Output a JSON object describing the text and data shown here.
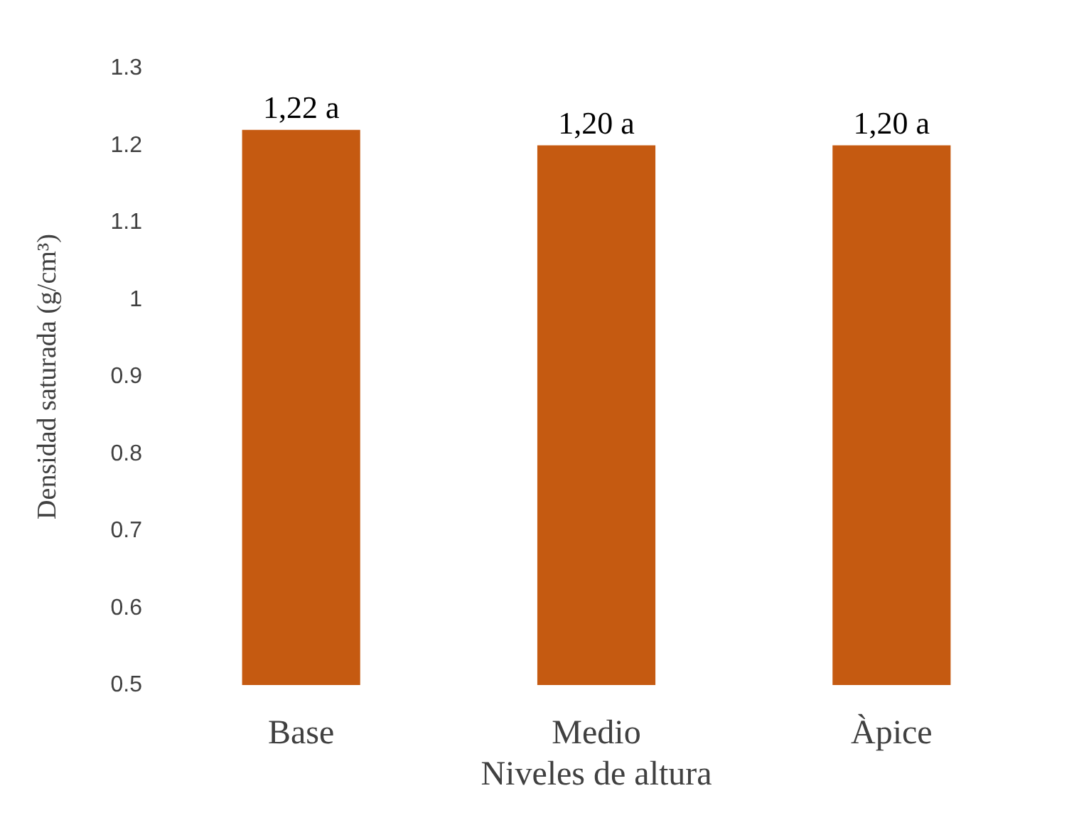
{
  "chart_data": {
    "type": "bar",
    "xlabel": "Niveles de altura",
    "ylabel": "Densidad saturada (g/cm³)",
    "categories": [
      "Base",
      "Medio",
      "Àpice"
    ],
    "values": [
      1.22,
      1.2,
      1.2
    ],
    "value_labels": [
      "1,22 a",
      "1,20 a",
      "1,20 a"
    ],
    "color": "#c55a11",
    "ylim": [
      0.5,
      1.3
    ],
    "yticks": [
      0.5,
      0.6,
      0.7,
      0.8,
      0.9,
      1,
      1.1,
      1.2,
      1.3
    ],
    "grid": false
  }
}
